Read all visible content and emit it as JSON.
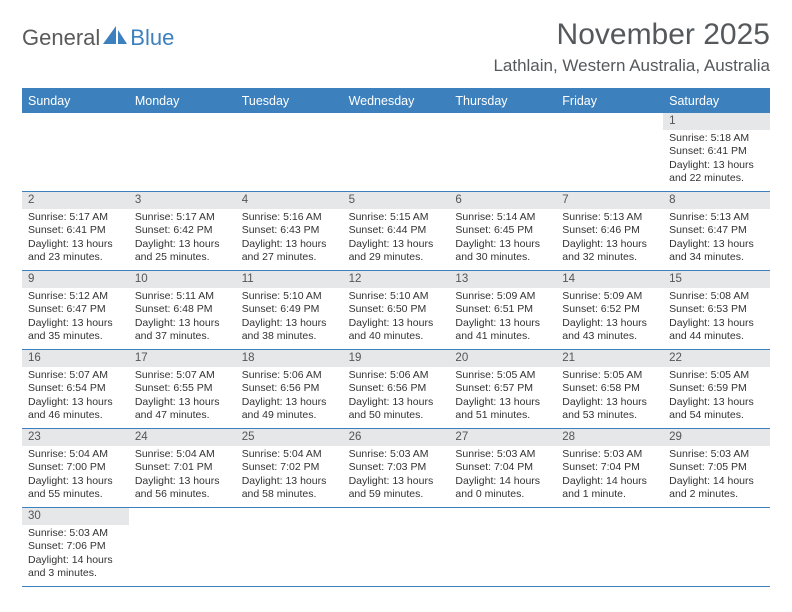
{
  "logo": {
    "text1": "General",
    "text2": "Blue",
    "color1": "#5a5a5a",
    "color2": "#3c80bd"
  },
  "title": "November 2025",
  "location": "Lathlain, Western Australia, Australia",
  "colors": {
    "header_bg": "#3c80bd",
    "daynum_bg": "#e6e7e8",
    "border": "#3c80bd"
  },
  "day_names": [
    "Sunday",
    "Monday",
    "Tuesday",
    "Wednesday",
    "Thursday",
    "Friday",
    "Saturday"
  ],
  "weeks": [
    [
      null,
      null,
      null,
      null,
      null,
      null,
      {
        "n": "1",
        "sr": "5:18 AM",
        "ss": "6:41 PM",
        "dl": "13 hours and 22 minutes."
      }
    ],
    [
      {
        "n": "2",
        "sr": "5:17 AM",
        "ss": "6:41 PM",
        "dl": "13 hours and 23 minutes."
      },
      {
        "n": "3",
        "sr": "5:17 AM",
        "ss": "6:42 PM",
        "dl": "13 hours and 25 minutes."
      },
      {
        "n": "4",
        "sr": "5:16 AM",
        "ss": "6:43 PM",
        "dl": "13 hours and 27 minutes."
      },
      {
        "n": "5",
        "sr": "5:15 AM",
        "ss": "6:44 PM",
        "dl": "13 hours and 29 minutes."
      },
      {
        "n": "6",
        "sr": "5:14 AM",
        "ss": "6:45 PM",
        "dl": "13 hours and 30 minutes."
      },
      {
        "n": "7",
        "sr": "5:13 AM",
        "ss": "6:46 PM",
        "dl": "13 hours and 32 minutes."
      },
      {
        "n": "8",
        "sr": "5:13 AM",
        "ss": "6:47 PM",
        "dl": "13 hours and 34 minutes."
      }
    ],
    [
      {
        "n": "9",
        "sr": "5:12 AM",
        "ss": "6:47 PM",
        "dl": "13 hours and 35 minutes."
      },
      {
        "n": "10",
        "sr": "5:11 AM",
        "ss": "6:48 PM",
        "dl": "13 hours and 37 minutes."
      },
      {
        "n": "11",
        "sr": "5:10 AM",
        "ss": "6:49 PM",
        "dl": "13 hours and 38 minutes."
      },
      {
        "n": "12",
        "sr": "5:10 AM",
        "ss": "6:50 PM",
        "dl": "13 hours and 40 minutes."
      },
      {
        "n": "13",
        "sr": "5:09 AM",
        "ss": "6:51 PM",
        "dl": "13 hours and 41 minutes."
      },
      {
        "n": "14",
        "sr": "5:09 AM",
        "ss": "6:52 PM",
        "dl": "13 hours and 43 minutes."
      },
      {
        "n": "15",
        "sr": "5:08 AM",
        "ss": "6:53 PM",
        "dl": "13 hours and 44 minutes."
      }
    ],
    [
      {
        "n": "16",
        "sr": "5:07 AM",
        "ss": "6:54 PM",
        "dl": "13 hours and 46 minutes."
      },
      {
        "n": "17",
        "sr": "5:07 AM",
        "ss": "6:55 PM",
        "dl": "13 hours and 47 minutes."
      },
      {
        "n": "18",
        "sr": "5:06 AM",
        "ss": "6:56 PM",
        "dl": "13 hours and 49 minutes."
      },
      {
        "n": "19",
        "sr": "5:06 AM",
        "ss": "6:56 PM",
        "dl": "13 hours and 50 minutes."
      },
      {
        "n": "20",
        "sr": "5:05 AM",
        "ss": "6:57 PM",
        "dl": "13 hours and 51 minutes."
      },
      {
        "n": "21",
        "sr": "5:05 AM",
        "ss": "6:58 PM",
        "dl": "13 hours and 53 minutes."
      },
      {
        "n": "22",
        "sr": "5:05 AM",
        "ss": "6:59 PM",
        "dl": "13 hours and 54 minutes."
      }
    ],
    [
      {
        "n": "23",
        "sr": "5:04 AM",
        "ss": "7:00 PM",
        "dl": "13 hours and 55 minutes."
      },
      {
        "n": "24",
        "sr": "5:04 AM",
        "ss": "7:01 PM",
        "dl": "13 hours and 56 minutes."
      },
      {
        "n": "25",
        "sr": "5:04 AM",
        "ss": "7:02 PM",
        "dl": "13 hours and 58 minutes."
      },
      {
        "n": "26",
        "sr": "5:03 AM",
        "ss": "7:03 PM",
        "dl": "13 hours and 59 minutes."
      },
      {
        "n": "27",
        "sr": "5:03 AM",
        "ss": "7:04 PM",
        "dl": "14 hours and 0 minutes."
      },
      {
        "n": "28",
        "sr": "5:03 AM",
        "ss": "7:04 PM",
        "dl": "14 hours and 1 minute."
      },
      {
        "n": "29",
        "sr": "5:03 AM",
        "ss": "7:05 PM",
        "dl": "14 hours and 2 minutes."
      }
    ],
    [
      {
        "n": "30",
        "sr": "5:03 AM",
        "ss": "7:06 PM",
        "dl": "14 hours and 3 minutes."
      },
      null,
      null,
      null,
      null,
      null,
      null
    ]
  ],
  "labels": {
    "sunrise": "Sunrise:",
    "sunset": "Sunset:",
    "daylight": "Daylight:"
  }
}
